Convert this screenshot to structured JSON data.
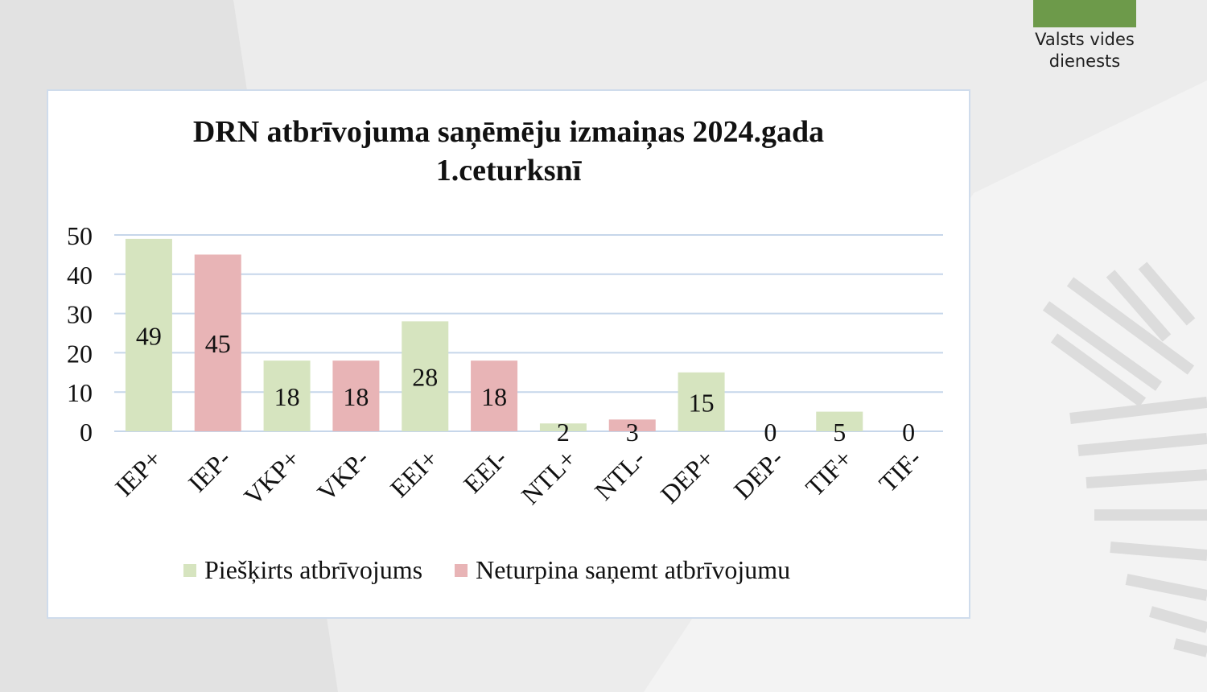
{
  "brand": {
    "name_line1": "Valsts vides",
    "name_line2": "dienests",
    "color": "#6d9a4a"
  },
  "colors": {
    "background": "#ececec",
    "grid": "#c6d6ea",
    "label": "#111111"
  },
  "chart_data": {
    "type": "bar",
    "title": "DRN atbrīvojuma saņēmēju izmaiņas 2024.gada 1.ceturksnī",
    "xlabel": "",
    "ylabel": "",
    "ylim": [
      0,
      50
    ],
    "yticks": [
      0,
      10,
      20,
      30,
      40,
      50
    ],
    "grid": true,
    "legend_position": "bottom",
    "categories": [
      "IEP+",
      "IEP-",
      "VKP+",
      "VKP-",
      "EEI+",
      "EEI-",
      "NTL+",
      "NTL-",
      "DEP+",
      "DEP-",
      "TIF+",
      "TIF-"
    ],
    "values": [
      49,
      45,
      18,
      18,
      28,
      18,
      2,
      3,
      15,
      0,
      5,
      0
    ],
    "series_of_bar": [
      0,
      1,
      0,
      1,
      0,
      1,
      0,
      1,
      0,
      1,
      0,
      1
    ],
    "series": [
      {
        "name": "Piešķirts atbrīvojums",
        "color": "#d6e4bf"
      },
      {
        "name": "Neturpina saņemt atbrīvojumu",
        "color": "#e8b4b6"
      }
    ]
  }
}
